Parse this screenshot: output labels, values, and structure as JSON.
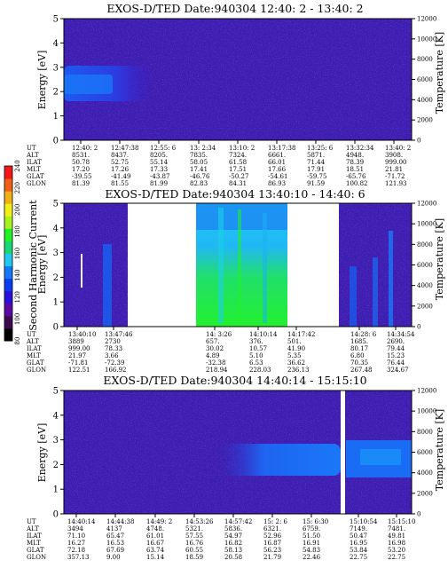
{
  "colorbar": {
    "label": "Second Harmonic Current",
    "ticks": [
      "80",
      "100",
      "120",
      "140",
      "160",
      "180",
      "200",
      "220",
      "240"
    ],
    "colors": [
      "#000000",
      "#3d0a4f",
      "#5a0aa0",
      "#2a10d8",
      "#0a3cf0",
      "#1478f8",
      "#22c8f0",
      "#1ad878",
      "#22f028",
      "#a8f020",
      "#f0f018",
      "#f0b018",
      "#f06018",
      "#f01818"
    ]
  },
  "panels": [
    {
      "title": "EXOS-D/TED   Date:940304  12:40: 2 - 13:40: 2",
      "y_label": "Energy [eV]",
      "y2_label": "Temperature [K]",
      "y_ticks": [
        "0",
        "1",
        "2",
        "3",
        "4",
        "5"
      ],
      "y2_ticks": [
        "0",
        "2000",
        "4000",
        "6000",
        "8000",
        "10000",
        "12000"
      ],
      "row_labels": [
        "UT",
        "ALT",
        "ILAT",
        "MLT",
        "GLAT",
        "GLON"
      ],
      "columns": [
        [
          "12:40: 2",
          "8531.",
          "50.78",
          "17.20",
          "-39.55",
          "81.39"
        ],
        [
          "12:47:38",
          "8437.",
          "52.75",
          "17.26",
          "-41.49",
          "81.55"
        ],
        [
          "12:55: 6",
          "8205.",
          "55.14",
          "17.33",
          "-43.87",
          "81.99"
        ],
        [
          "13: 2:34",
          "7835.",
          "58.05",
          "17.41",
          "-46.76",
          "82.83"
        ],
        [
          "13:10: 2",
          "7324.",
          "61.58",
          "17.51",
          "-50.27",
          "84.31"
        ],
        [
          "13:17:38",
          "6661.",
          "66.01",
          "17.66",
          "-54.61",
          "86.93"
        ],
        [
          "13:25: 6",
          "5871.",
          "71.44",
          "17.91",
          "-59.75",
          "91.59"
        ],
        [
          "13:32:34",
          "4948.",
          "78.39",
          "18.51",
          "-65.76",
          "100.82"
        ],
        [
          "13:40: 2",
          "3908.",
          "999.00",
          "21.81",
          "-71.72",
          "121.93"
        ]
      ]
    },
    {
      "title": "EXOS-D/TED   Date:940304  13:40:10 - 14:40: 6",
      "y_label": "Energy [eV]",
      "y2_label": "Temperature [K]",
      "y_ticks": [
        "0",
        "1",
        "2",
        "3",
        "4",
        "5"
      ],
      "y2_ticks": [
        "0",
        "2000",
        "4000",
        "6000",
        "8000",
        "10000",
        "12000"
      ],
      "row_labels": [
        "UT",
        "ALT",
        "ILAT",
        "MLT",
        "GLAT",
        "GLON"
      ],
      "columns": [
        [
          "13:40:10",
          "3889",
          "999.00",
          "21.97",
          "-71.81",
          "122.51"
        ],
        [
          "13:47:46",
          "2730",
          "78.33",
          "3.66",
          "-72.39",
          "166.92"
        ],
        [
          "14: 3:26",
          "657.",
          "30.02",
          "4.89",
          "-32.38",
          "218.94"
        ],
        [
          "14:10:14",
          "376.",
          "10.57",
          "5.10",
          "6.53",
          "228.03"
        ],
        [
          "14:17:42",
          "501.",
          "41.90",
          "5.35",
          "36.62",
          "236.13"
        ],
        [
          "14:28: 6",
          "1685.",
          "80.17",
          "6.80",
          "70.35",
          "267.48"
        ],
        [
          "14:34:54",
          "2690.",
          "79.44",
          "15.23",
          "76.44",
          "324.67"
        ]
      ]
    },
    {
      "title": "EXOS-D/TED   Date:940304  14:40:14 - 15:15:10",
      "y_label": "Energy [eV]",
      "y2_label": "Temperature [K]",
      "y_ticks": [
        "0",
        "1",
        "2",
        "3",
        "4",
        "5"
      ],
      "y2_ticks": [
        "0",
        "2000",
        "4000",
        "6000",
        "8000",
        "10000",
        "12000"
      ],
      "row_labels": [
        "UT",
        "ALT",
        "ILAT",
        "MLT",
        "GLAT",
        "GLON"
      ],
      "columns": [
        [
          "14:40:14",
          "3494",
          "71.10",
          "16.27",
          "72.18",
          "357.13"
        ],
        [
          "14:44:38",
          "4137",
          "65.47",
          "16.53",
          "67.69",
          "9.00"
        ],
        [
          "14:49: 2",
          "4748.",
          "61.01",
          "16.67",
          "63.74",
          "15.14"
        ],
        [
          "14:53:26",
          "5321.",
          "57.55",
          "16.76",
          "60.55",
          "18.59"
        ],
        [
          "14:57:42",
          "5836.",
          "54.97",
          "16.82",
          "58.13",
          "20.58"
        ],
        [
          "15: 2: 6",
          "6321.",
          "52.96",
          "16.87",
          "56.23",
          "21.79"
        ],
        [
          "15: 6:30",
          "6759.",
          "51.50",
          "16.91",
          "54.83",
          "22.46"
        ],
        [
          "15:10:54",
          "7149.",
          "50.47",
          "16.95",
          "53.84",
          "22.75"
        ],
        [
          "15:15:10",
          "7481.",
          "49.81",
          "16.98",
          "53.20",
          "22.75"
        ]
      ]
    }
  ]
}
